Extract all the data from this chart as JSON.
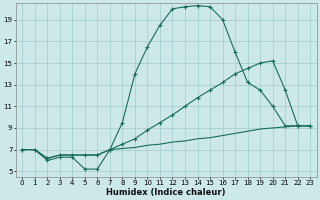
{
  "xlabel": "Humidex (Indice chaleur)",
  "bg_color": "#cce8e8",
  "grid_color": "#aacfcf",
  "line_color": "#1a6b5a",
  "xlim": [
    -0.5,
    23.5
  ],
  "ylim": [
    4.5,
    20.5
  ],
  "xticks": [
    0,
    1,
    2,
    3,
    4,
    5,
    6,
    7,
    8,
    9,
    10,
    11,
    12,
    13,
    14,
    15,
    16,
    17,
    18,
    19,
    20,
    21,
    22,
    23
  ],
  "yticks": [
    5,
    7,
    9,
    11,
    13,
    15,
    17,
    19
  ],
  "line1_x": [
    0,
    1,
    2,
    3,
    4,
    5,
    6,
    7,
    8,
    9,
    10,
    11,
    12,
    13,
    14,
    15,
    16,
    17,
    18,
    19,
    20,
    21,
    22,
    23
  ],
  "line1_y": [
    7.0,
    7.0,
    6.0,
    6.3,
    6.3,
    5.2,
    5.2,
    7.0,
    9.5,
    14.0,
    16.5,
    18.5,
    20.0,
    20.2,
    20.3,
    20.2,
    19.0,
    16.0,
    13.2,
    12.5,
    11.0,
    9.2,
    9.2,
    9.2
  ],
  "line2_x": [
    0,
    1,
    2,
    3,
    4,
    5,
    6,
    7,
    8,
    9,
    10,
    11,
    12,
    13,
    14,
    15,
    16,
    17,
    18,
    19,
    20,
    21,
    22,
    23
  ],
  "line2_y": [
    7.0,
    7.0,
    6.2,
    6.5,
    6.5,
    6.5,
    6.5,
    7.0,
    7.5,
    8.0,
    8.8,
    9.5,
    10.2,
    11.0,
    11.8,
    12.5,
    13.2,
    14.0,
    14.5,
    15.0,
    15.2,
    12.5,
    9.2,
    9.2
  ],
  "line3_x": [
    0,
    1,
    2,
    3,
    4,
    5,
    6,
    7,
    8,
    9,
    10,
    11,
    12,
    13,
    14,
    15,
    16,
    17,
    18,
    19,
    20,
    21,
    22,
    23
  ],
  "line3_y": [
    7.0,
    7.0,
    6.2,
    6.5,
    6.5,
    6.5,
    6.5,
    7.0,
    7.1,
    7.2,
    7.4,
    7.5,
    7.7,
    7.8,
    8.0,
    8.1,
    8.3,
    8.5,
    8.7,
    8.9,
    9.0,
    9.1,
    9.2,
    9.2
  ]
}
